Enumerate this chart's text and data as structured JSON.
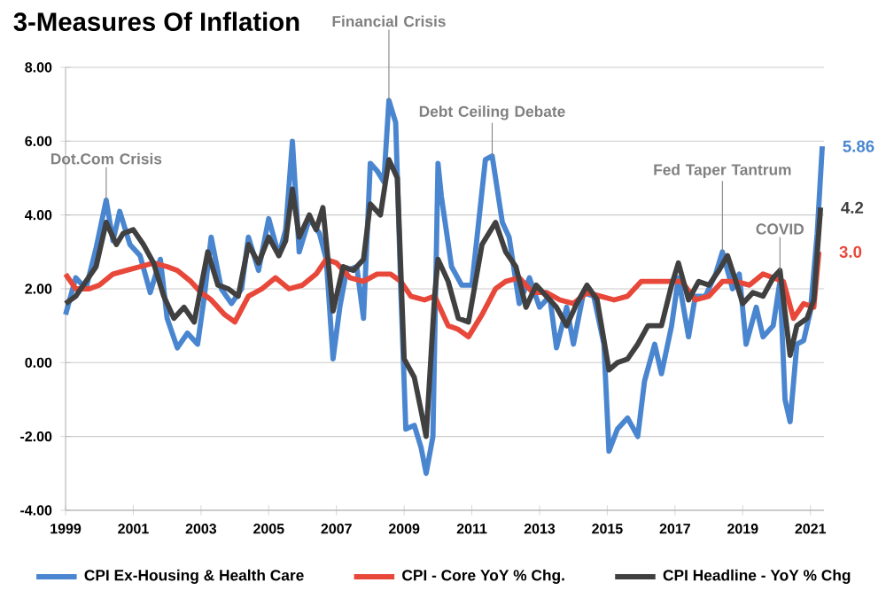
{
  "chart_data": {
    "type": "line",
    "title": "3-Measures Of Inflation",
    "xlim": [
      1999,
      2021.4
    ],
    "xticks": [
      1999,
      2001,
      2003,
      2005,
      2007,
      2009,
      2011,
      2013,
      2015,
      2017,
      2019,
      2021
    ],
    "ylim": [
      -4,
      8
    ],
    "yticks": [
      {
        "value": -4,
        "label": "-4.00"
      },
      {
        "value": -2,
        "label": "-2.00"
      },
      {
        "value": 0,
        "label": "0.00"
      },
      {
        "value": 2,
        "label": "2.00"
      },
      {
        "value": 4,
        "label": "4.00"
      },
      {
        "value": 6,
        "label": "6.00"
      },
      {
        "value": 8,
        "label": "8.00"
      }
    ],
    "grid": "y",
    "legend": "bottom",
    "series": [
      {
        "name": "CPI Ex-Housing & Health Care",
        "color": "#4a86d0",
        "x": [
          1999.0,
          1999.3,
          1999.6,
          1999.9,
          2000.2,
          2000.4,
          2000.6,
          2000.9,
          2001.2,
          2001.5,
          2001.8,
          2002.0,
          2002.3,
          2002.6,
          2002.9,
          2003.1,
          2003.3,
          2003.6,
          2003.9,
          2004.2,
          2004.4,
          2004.7,
          2005.0,
          2005.3,
          2005.5,
          2005.7,
          2005.9,
          2006.2,
          2006.5,
          2006.7,
          2006.9,
          2007.1,
          2007.3,
          2007.6,
          2007.8,
          2008.0,
          2008.2,
          2008.4,
          2008.55,
          2008.75,
          2008.9,
          2009.05,
          2009.3,
          2009.5,
          2009.65,
          2009.85,
          2010.0,
          2010.1,
          2010.4,
          2010.7,
          2011.0,
          2011.4,
          2011.6,
          2011.9,
          2012.1,
          2012.4,
          2012.7,
          2013.0,
          2013.3,
          2013.5,
          2013.8,
          2014.0,
          2014.3,
          2014.6,
          2014.9,
          2015.05,
          2015.3,
          2015.6,
          2015.9,
          2016.1,
          2016.4,
          2016.6,
          2016.9,
          2017.1,
          2017.4,
          2017.6,
          2017.9,
          2018.2,
          2018.4,
          2018.7,
          2018.9,
          2019.1,
          2019.4,
          2019.6,
          2019.9,
          2020.1,
          2020.25,
          2020.4,
          2020.6,
          2020.8,
          2021.0,
          2021.2,
          2021.35
        ],
        "values": [
          1.3,
          2.3,
          2.0,
          3.1,
          4.4,
          3.3,
          4.1,
          3.2,
          2.9,
          1.9,
          2.8,
          1.2,
          0.4,
          0.8,
          0.5,
          1.8,
          3.4,
          2.0,
          1.6,
          2.0,
          3.4,
          2.5,
          3.9,
          2.9,
          3.6,
          6.0,
          3.0,
          3.9,
          3.5,
          2.8,
          0.1,
          1.5,
          2.5,
          2.6,
          1.2,
          5.4,
          5.2,
          4.9,
          7.1,
          6.5,
          2.0,
          -1.8,
          -1.7,
          -2.3,
          -3.0,
          -2.0,
          5.4,
          4.5,
          2.6,
          2.1,
          2.1,
          5.5,
          5.6,
          3.8,
          3.4,
          1.6,
          2.3,
          1.5,
          1.8,
          0.4,
          1.5,
          0.5,
          1.9,
          1.8,
          0.5,
          -2.4,
          -1.8,
          -1.5,
          -2.0,
          -0.5,
          0.5,
          -0.3,
          1.0,
          2.3,
          0.7,
          1.8,
          1.8,
          2.4,
          3.0,
          2.0,
          2.4,
          0.5,
          1.5,
          0.7,
          1.0,
          2.2,
          -1.0,
          -1.6,
          0.5,
          0.6,
          1.4,
          3.5,
          5.86
        ],
        "value_labels": [
          null,
          null,
          null,
          null,
          null,
          null,
          null,
          null,
          null,
          null,
          null,
          null,
          null,
          null,
          null,
          null,
          null,
          null,
          null,
          null,
          null,
          null,
          null,
          null,
          null,
          null,
          null,
          null,
          null,
          null,
          null,
          null,
          null,
          null,
          null,
          null,
          null,
          null,
          null,
          null,
          null,
          null,
          null,
          null,
          null,
          null,
          null,
          null,
          null,
          null,
          null,
          null,
          null,
          null,
          null,
          null,
          null,
          null,
          null,
          null,
          null,
          null,
          null,
          null,
          null,
          null,
          null,
          null,
          null,
          null,
          null,
          null,
          null,
          null,
          null,
          null,
          null,
          null,
          null,
          null,
          null,
          null,
          null,
          null,
          null,
          null,
          null,
          null,
          null,
          null,
          null,
          null,
          "5.86"
        ]
      },
      {
        "name": "CPI - Core YoY % Chg.",
        "color": "#e8483a",
        "x": [
          1999.0,
          1999.3,
          1999.7,
          2000.0,
          2000.4,
          2000.8,
          2001.2,
          2001.6,
          2002.0,
          2002.3,
          2002.7,
          2003.0,
          2003.3,
          2003.7,
          2004.0,
          2004.4,
          2004.8,
          2005.2,
          2005.6,
          2006.0,
          2006.4,
          2006.7,
          2007.0,
          2007.4,
          2007.8,
          2008.2,
          2008.6,
          2008.9,
          2009.2,
          2009.6,
          2009.9,
          2010.3,
          2010.6,
          2010.9,
          2011.3,
          2011.7,
          2012.0,
          2012.4,
          2012.8,
          2013.2,
          2013.6,
          2014.0,
          2014.4,
          2014.8,
          2015.2,
          2015.6,
          2016.0,
          2016.4,
          2016.8,
          2017.2,
          2017.6,
          2018.0,
          2018.4,
          2018.8,
          2019.2,
          2019.6,
          2019.9,
          2020.2,
          2020.5,
          2020.8,
          2021.1,
          2021.25
        ],
        "values": [
          2.4,
          2.0,
          2.0,
          2.1,
          2.4,
          2.5,
          2.6,
          2.7,
          2.6,
          2.5,
          2.2,
          1.9,
          1.7,
          1.3,
          1.1,
          1.8,
          2.0,
          2.3,
          2.0,
          2.1,
          2.4,
          2.8,
          2.7,
          2.3,
          2.2,
          2.4,
          2.4,
          2.2,
          1.8,
          1.7,
          1.8,
          1.0,
          0.9,
          0.7,
          1.3,
          2.0,
          2.2,
          2.3,
          1.9,
          1.9,
          1.7,
          1.6,
          1.9,
          1.8,
          1.7,
          1.8,
          2.2,
          2.2,
          2.2,
          2.2,
          1.7,
          1.8,
          2.2,
          2.2,
          2.1,
          2.4,
          2.3,
          2.2,
          1.2,
          1.6,
          1.5,
          3.0
        ],
        "value_labels": [
          null,
          null,
          null,
          null,
          null,
          null,
          null,
          null,
          null,
          null,
          null,
          null,
          null,
          null,
          null,
          null,
          null,
          null,
          null,
          null,
          null,
          null,
          null,
          null,
          null,
          null,
          null,
          null,
          null,
          null,
          null,
          null,
          null,
          null,
          null,
          null,
          null,
          null,
          null,
          null,
          null,
          null,
          null,
          null,
          null,
          null,
          null,
          null,
          null,
          null,
          null,
          null,
          null,
          null,
          null,
          null,
          null,
          null,
          null,
          null,
          null,
          "3.0"
        ]
      },
      {
        "name": "CPI Headline - YoY % Chg",
        "color": "#404040",
        "x": [
          1999.0,
          1999.3,
          1999.6,
          1999.9,
          2000.2,
          2000.5,
          2000.7,
          2001.0,
          2001.3,
          2001.6,
          2001.9,
          2002.2,
          2002.5,
          2002.8,
          2003.2,
          2003.5,
          2003.8,
          2004.1,
          2004.4,
          2004.7,
          2005.0,
          2005.3,
          2005.5,
          2005.7,
          2005.9,
          2006.2,
          2006.4,
          2006.6,
          2006.9,
          2007.2,
          2007.5,
          2007.8,
          2008.0,
          2008.3,
          2008.55,
          2008.8,
          2009.0,
          2009.3,
          2009.5,
          2009.65,
          2009.9,
          2010.0,
          2010.3,
          2010.6,
          2010.9,
          2011.3,
          2011.7,
          2012.0,
          2012.3,
          2012.6,
          2012.9,
          2013.2,
          2013.5,
          2013.8,
          2014.1,
          2014.4,
          2014.7,
          2015.05,
          2015.3,
          2015.6,
          2015.9,
          2016.2,
          2016.6,
          2016.9,
          2017.1,
          2017.4,
          2017.7,
          2018.0,
          2018.3,
          2018.55,
          2018.8,
          2019.0,
          2019.3,
          2019.6,
          2019.9,
          2020.1,
          2020.4,
          2020.6,
          2020.9,
          2021.1,
          2021.3
        ],
        "values": [
          1.6,
          1.8,
          2.2,
          2.6,
          3.8,
          3.2,
          3.5,
          3.6,
          3.2,
          2.7,
          1.8,
          1.2,
          1.5,
          1.1,
          3.0,
          2.1,
          2.0,
          1.8,
          3.2,
          2.7,
          3.4,
          2.9,
          3.3,
          4.7,
          3.4,
          4.0,
          3.6,
          4.2,
          1.4,
          2.6,
          2.5,
          2.8,
          4.3,
          4.0,
          5.5,
          5.0,
          0.1,
          -0.4,
          -1.3,
          -2.0,
          1.8,
          2.8,
          2.2,
          1.2,
          1.1,
          3.2,
          3.8,
          3.0,
          2.6,
          1.5,
          2.1,
          1.8,
          1.5,
          1.0,
          1.6,
          2.1,
          1.7,
          -0.2,
          0.0,
          0.1,
          0.5,
          1.0,
          1.0,
          2.1,
          2.7,
          1.7,
          2.2,
          2.1,
          2.5,
          2.9,
          2.2,
          1.6,
          1.9,
          1.8,
          2.3,
          2.5,
          0.2,
          1.0,
          1.2,
          1.7,
          4.2
        ],
        "value_labels": [
          null,
          null,
          null,
          null,
          null,
          null,
          null,
          null,
          null,
          null,
          null,
          null,
          null,
          null,
          null,
          null,
          null,
          null,
          null,
          null,
          null,
          null,
          null,
          null,
          null,
          null,
          null,
          null,
          null,
          null,
          null,
          null,
          null,
          null,
          null,
          null,
          null,
          null,
          null,
          null,
          null,
          null,
          null,
          null,
          null,
          null,
          null,
          null,
          null,
          null,
          null,
          null,
          null,
          null,
          null,
          null,
          null,
          null,
          null,
          null,
          null,
          null,
          null,
          null,
          null,
          null,
          null,
          null,
          null,
          null,
          null,
          null,
          null,
          null,
          null,
          null,
          null,
          null,
          null,
          null,
          "4.2"
        ]
      }
    ],
    "annotations": [
      {
        "text": "Dot.Com Crisis",
        "x": 2000.2,
        "y": 4.4
      },
      {
        "text": "Financial Crisis",
        "x": 2008.55,
        "y": 7.1
      },
      {
        "text": "Debt Ceiling Debate",
        "x": 2011.6,
        "y": 5.6
      },
      {
        "text": "Fed Taper Tantrum",
        "x": 2018.4,
        "y": 3.0
      },
      {
        "text": "COVID",
        "x": 2020.1,
        "y": 2.5
      }
    ]
  }
}
